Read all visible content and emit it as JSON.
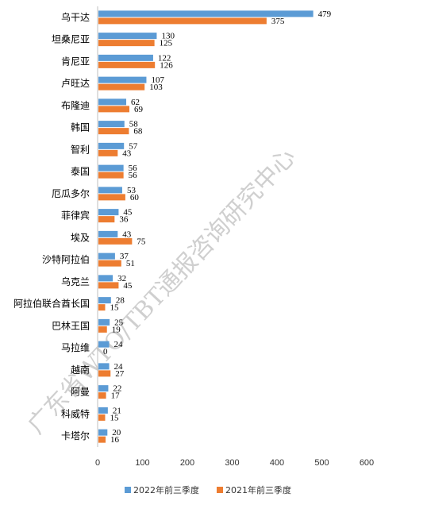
{
  "chart_data": {
    "type": "bar",
    "orientation": "horizontal",
    "categories": [
      "乌干达",
      "坦桑尼亚",
      "肯尼亚",
      "卢旺达",
      "布隆迪",
      "韩国",
      "智利",
      "泰国",
      "厄瓜多尔",
      "菲律宾",
      "埃及",
      "沙特阿拉伯",
      "乌克兰",
      "阿拉伯联合酋长国",
      "巴林王国",
      "马拉维",
      "越南",
      "阿曼",
      "科威特",
      "卡塔尔"
    ],
    "series": [
      {
        "name": "2022年前三季度",
        "color": "#5b9bd5",
        "values": [
          479,
          130,
          122,
          107,
          62,
          58,
          57,
          56,
          53,
          45,
          43,
          37,
          32,
          28,
          25,
          24,
          24,
          22,
          21,
          20
        ]
      },
      {
        "name": "2021年前三季度",
        "color": "#ed7d31",
        "values": [
          375,
          125,
          126,
          103,
          69,
          68,
          43,
          56,
          60,
          36,
          75,
          51,
          45,
          15,
          19,
          0,
          27,
          17,
          15,
          16
        ]
      }
    ],
    "xlim": [
      0,
      600
    ],
    "xticks": [
      0,
      100,
      200,
      300,
      400,
      500,
      600
    ],
    "grid": false,
    "legend_position": "bottom"
  },
  "watermark": "广东省WTO/TBT通报咨询研究中心"
}
